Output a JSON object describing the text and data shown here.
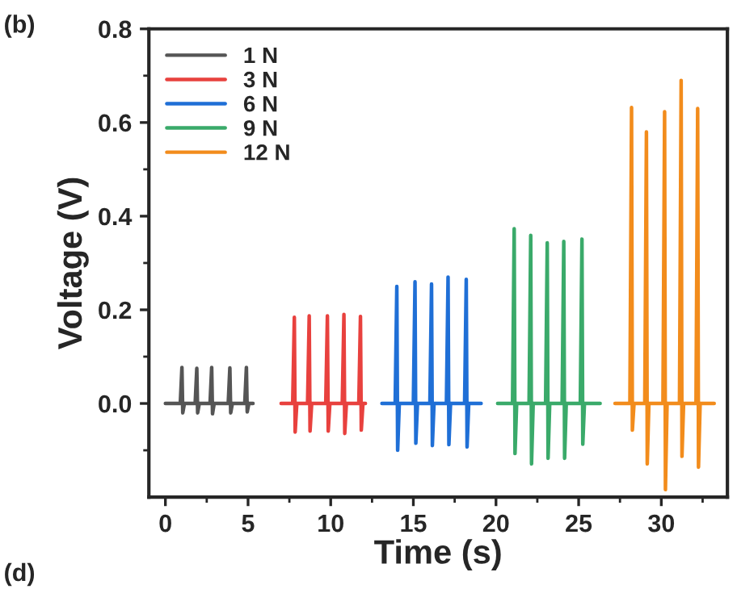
{
  "chart_data": {
    "type": "line",
    "xlabel": "Time (s)",
    "ylabel": "Voltage (V)",
    "annotations": [
      "(b)",
      "(d)"
    ],
    "xlim": [
      -1,
      34
    ],
    "ylim": [
      -0.2,
      0.8
    ],
    "xticks": [
      0,
      {
        "value": 2.5,
        "label": null
      },
      5,
      {
        "value": 7.5,
        "label": null
      },
      10,
      {
        "value": 12.5,
        "label": null
      },
      15,
      {
        "value": 17.5,
        "label": null
      },
      20,
      {
        "value": 22.5,
        "label": null
      },
      25,
      {
        "value": 27.5,
        "label": null
      },
      30,
      {
        "value": 32.5,
        "label": null
      }
    ],
    "yticks": [
      {
        "value": -0.1,
        "label": null
      },
      {
        "value": 0,
        "label": "0.0"
      },
      {
        "value": 0.1,
        "label": null
      },
      {
        "value": 0.2,
        "label": "0.2"
      },
      {
        "value": 0.3,
        "label": null
      },
      {
        "value": 0.4,
        "label": "0.4"
      },
      {
        "value": 0.5,
        "label": null
      },
      {
        "value": 0.6,
        "label": "0.6"
      },
      {
        "value": 0.7,
        "label": null
      },
      {
        "value": 0.8,
        "label": "0.8"
      }
    ],
    "grid": false,
    "legend": "top left",
    "marker": "none",
    "line_style": "solid",
    "series": [
      {
        "name": "1 N",
        "color": "#555555",
        "x": [
          0,
          0.9,
          1.0,
          1.05,
          1.15,
          1.8,
          1.9,
          1.95,
          2.05,
          2.7,
          2.8,
          2.85,
          2.95,
          3.8,
          3.9,
          3.95,
          4.05,
          4.8,
          4.9,
          4.95,
          5.05,
          5.3
        ],
        "values": [
          0,
          0,
          0.077,
          -0.02,
          0,
          0,
          0.075,
          -0.02,
          0,
          0,
          0.077,
          -0.022,
          0,
          0,
          0.076,
          -0.02,
          0,
          0,
          0.077,
          -0.018,
          0,
          0
        ]
      },
      {
        "name": "3 N",
        "color": "#e8413e",
        "x": [
          7,
          7.7,
          7.8,
          7.85,
          7.95,
          8.6,
          8.7,
          8.75,
          8.85,
          9.7,
          9.8,
          9.85,
          9.95,
          10.7,
          10.8,
          10.85,
          10.95,
          11.7,
          11.8,
          11.85,
          11.95,
          12.1
        ],
        "values": [
          0,
          0,
          0.184,
          -0.061,
          0,
          0,
          0.187,
          -0.059,
          0,
          0,
          0.187,
          -0.059,
          0,
          0,
          0.19,
          -0.064,
          0,
          0,
          0.186,
          -0.057,
          0,
          0
        ]
      },
      {
        "name": "6 N",
        "color": "#1f6fd6",
        "x": [
          13.1,
          13.9,
          14.0,
          14.05,
          14.15,
          15.0,
          15.1,
          15.15,
          15.25,
          16.0,
          16.1,
          16.15,
          16.25,
          17.0,
          17.1,
          17.15,
          17.25,
          18.1,
          18.2,
          18.25,
          18.35,
          19.1
        ],
        "values": [
          0,
          0,
          0.25,
          -0.1,
          0,
          0,
          0.26,
          -0.085,
          0,
          0,
          0.255,
          -0.09,
          0,
          0,
          0.27,
          -0.088,
          0,
          0,
          0.265,
          -0.093,
          0,
          0
        ]
      },
      {
        "name": "9 N",
        "color": "#3aaa6a",
        "x": [
          20.1,
          21.0,
          21.1,
          21.15,
          21.25,
          22.0,
          22.1,
          22.15,
          22.25,
          23.0,
          23.1,
          23.15,
          23.25,
          24.0,
          24.1,
          24.15,
          24.25,
          25.1,
          25.2,
          25.25,
          25.35,
          26.3
        ],
        "values": [
          0,
          0,
          0.373,
          -0.107,
          0,
          0,
          0.359,
          -0.129,
          0,
          0,
          0.343,
          -0.117,
          0,
          0,
          0.346,
          -0.117,
          0,
          0,
          0.351,
          -0.087,
          0,
          0
        ]
      },
      {
        "name": "12 N",
        "color": "#f28c1c",
        "x": [
          27.2,
          28.1,
          28.2,
          28.25,
          28.35,
          29.0,
          29.1,
          29.15,
          29.25,
          30.1,
          30.2,
          30.25,
          30.35,
          31.1,
          31.2,
          31.25,
          31.35,
          32.1,
          32.2,
          32.25,
          32.35,
          33.2
        ],
        "values": [
          0,
          0,
          0.632,
          -0.057,
          0,
          0,
          0.58,
          -0.129,
          0,
          0,
          0.623,
          -0.184,
          0,
          0,
          0.69,
          -0.113,
          0,
          0,
          0.63,
          -0.136,
          0,
          0
        ]
      }
    ]
  }
}
